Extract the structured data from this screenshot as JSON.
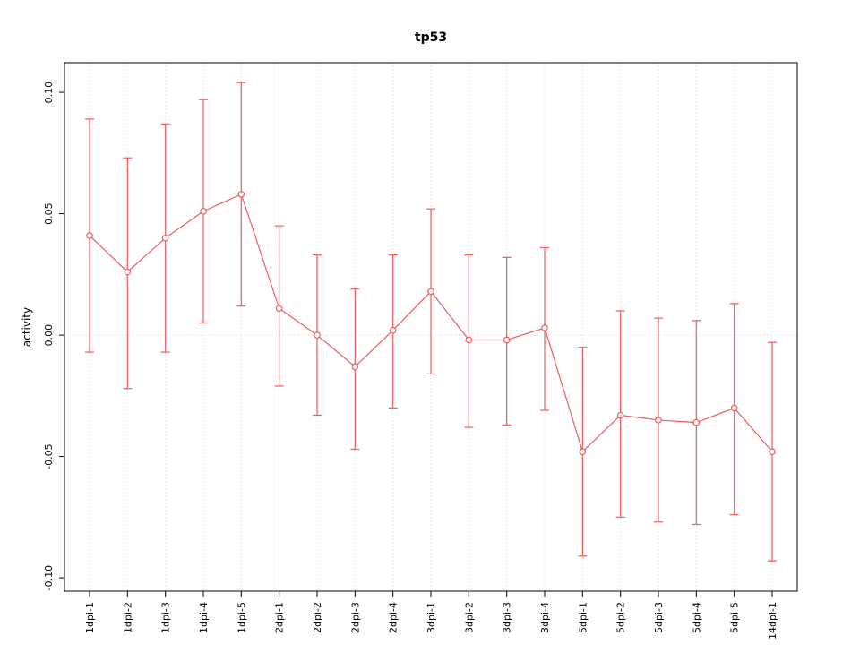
{
  "page": {
    "background": "#ffffff"
  },
  "chart_data": {
    "type": "line",
    "title": "tp53",
    "xlabel": "",
    "ylabel": "activity",
    "legend": "none",
    "grid": "light dotted vertical line at each category; light dotted horizontal line at y=0",
    "point_style": "open-circle",
    "error_bars": true,
    "ylim": [
      -0.1055,
      0.1122
    ],
    "yticks": [
      -0.1,
      -0.05,
      0.0,
      0.05,
      0.1
    ],
    "categories": [
      "1dpi-1",
      "1dpi-2",
      "1dpi-3",
      "1dpi-4",
      "1dpi-5",
      "2dpi-1",
      "2dpi-2",
      "2dpi-3",
      "2dpi-4",
      "3dpi-1",
      "3dpi-2",
      "3dpi-3",
      "3dpi-4",
      "5dpi-1",
      "5dpi-2",
      "5dpi-3",
      "5dpi-4",
      "5dpi-5",
      "14dpi-1"
    ],
    "series": [
      {
        "name": "tp53 activity",
        "values": [
          0.041,
          0.026,
          0.04,
          0.051,
          0.058,
          0.011,
          0.0,
          -0.013,
          0.002,
          0.018,
          -0.002,
          -0.002,
          0.003,
          -0.048,
          -0.033,
          -0.035,
          -0.036,
          -0.03,
          -0.048
        ],
        "upper": [
          0.089,
          0.073,
          0.087,
          0.097,
          0.104,
          0.045,
          0.033,
          0.019,
          0.033,
          0.052,
          0.033,
          0.032,
          0.036,
          -0.005,
          0.01,
          0.007,
          0.006,
          0.013,
          -0.003
        ],
        "lower": [
          -0.007,
          -0.022,
          -0.007,
          0.005,
          0.012,
          -0.021,
          -0.033,
          -0.047,
          -0.03,
          -0.016,
          -0.038,
          -0.037,
          -0.031,
          -0.091,
          -0.075,
          -0.077,
          -0.078,
          -0.074,
          -0.093
        ]
      }
    ],
    "colors": {
      "series": "#f05b5b",
      "grid": "#d8d8d8",
      "axis": "#000000",
      "background": "#ffffff"
    }
  }
}
